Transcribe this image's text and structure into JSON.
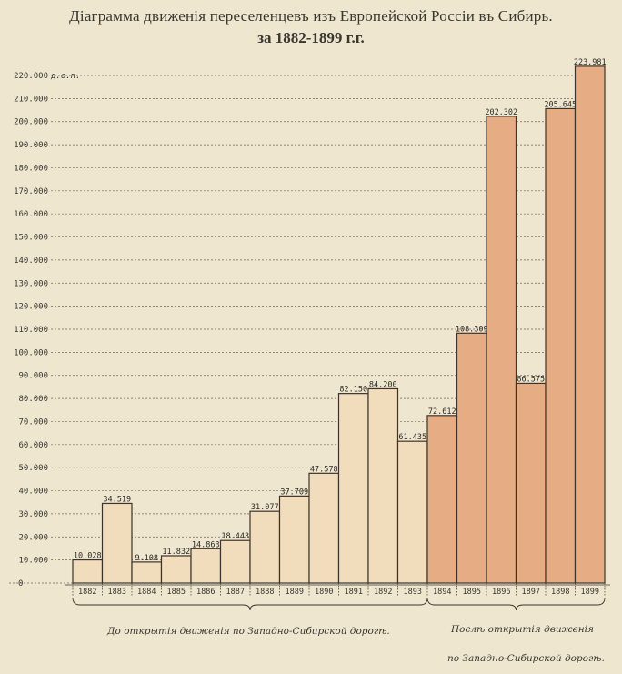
{
  "chart_data": {
    "type": "bar",
    "title": "Діаграмма движенія переселенцевъ изъ Европейской Россіи въ Сибирь.",
    "subtitle": "за 1882-1899 г.г.",
    "y_unit_label": "д.о.п.",
    "ylim": [
      0,
      220000
    ],
    "yticks": [
      "10.000",
      "20.000",
      "30.000",
      "40.000",
      "50.000",
      "60.000",
      "70.000",
      "80.000",
      "90.000",
      "100.000",
      "110.000",
      "120.000",
      "130.000",
      "140.000",
      "150.000",
      "160.000",
      "170.000",
      "180.000",
      "190.000",
      "200.000",
      "210.000",
      "220.000"
    ],
    "grid": true,
    "categories": [
      "1882",
      "1883",
      "1884",
      "1885",
      "1886",
      "1887",
      "1888",
      "1889",
      "1890",
      "1891",
      "1892",
      "1893",
      "1894",
      "1895",
      "1896",
      "1897",
      "1898",
      "1899"
    ],
    "values": [
      10028,
      34519,
      9108,
      11832,
      14863,
      18443,
      31077,
      37709,
      47578,
      82150,
      84200,
      61435,
      72612,
      108309,
      202302,
      86575,
      205645,
      223981
    ],
    "value_labels": [
      "10.028",
      "34.519",
      "9.108",
      "11.832",
      "14.863",
      "18.443",
      "31.077",
      "37.709",
      "47.578",
      "82.150",
      "84.200",
      "61.435",
      "72.612",
      "108.309",
      "202.302",
      "86.575",
      "205.645",
      "223.981"
    ],
    "groups": [
      {
        "label_lines": [
          "До открытія движенія по Западно-Сибирской дорогѣ."
        ],
        "from": "1882",
        "to": "1893",
        "color": "#f1dcbc"
      },
      {
        "label_lines": [
          "Послѣ открытія движенія",
          "по Западно-Сибирской дорогѣ."
        ],
        "from": "1894",
        "to": "1899",
        "color": "#e6ad84"
      }
    ]
  }
}
